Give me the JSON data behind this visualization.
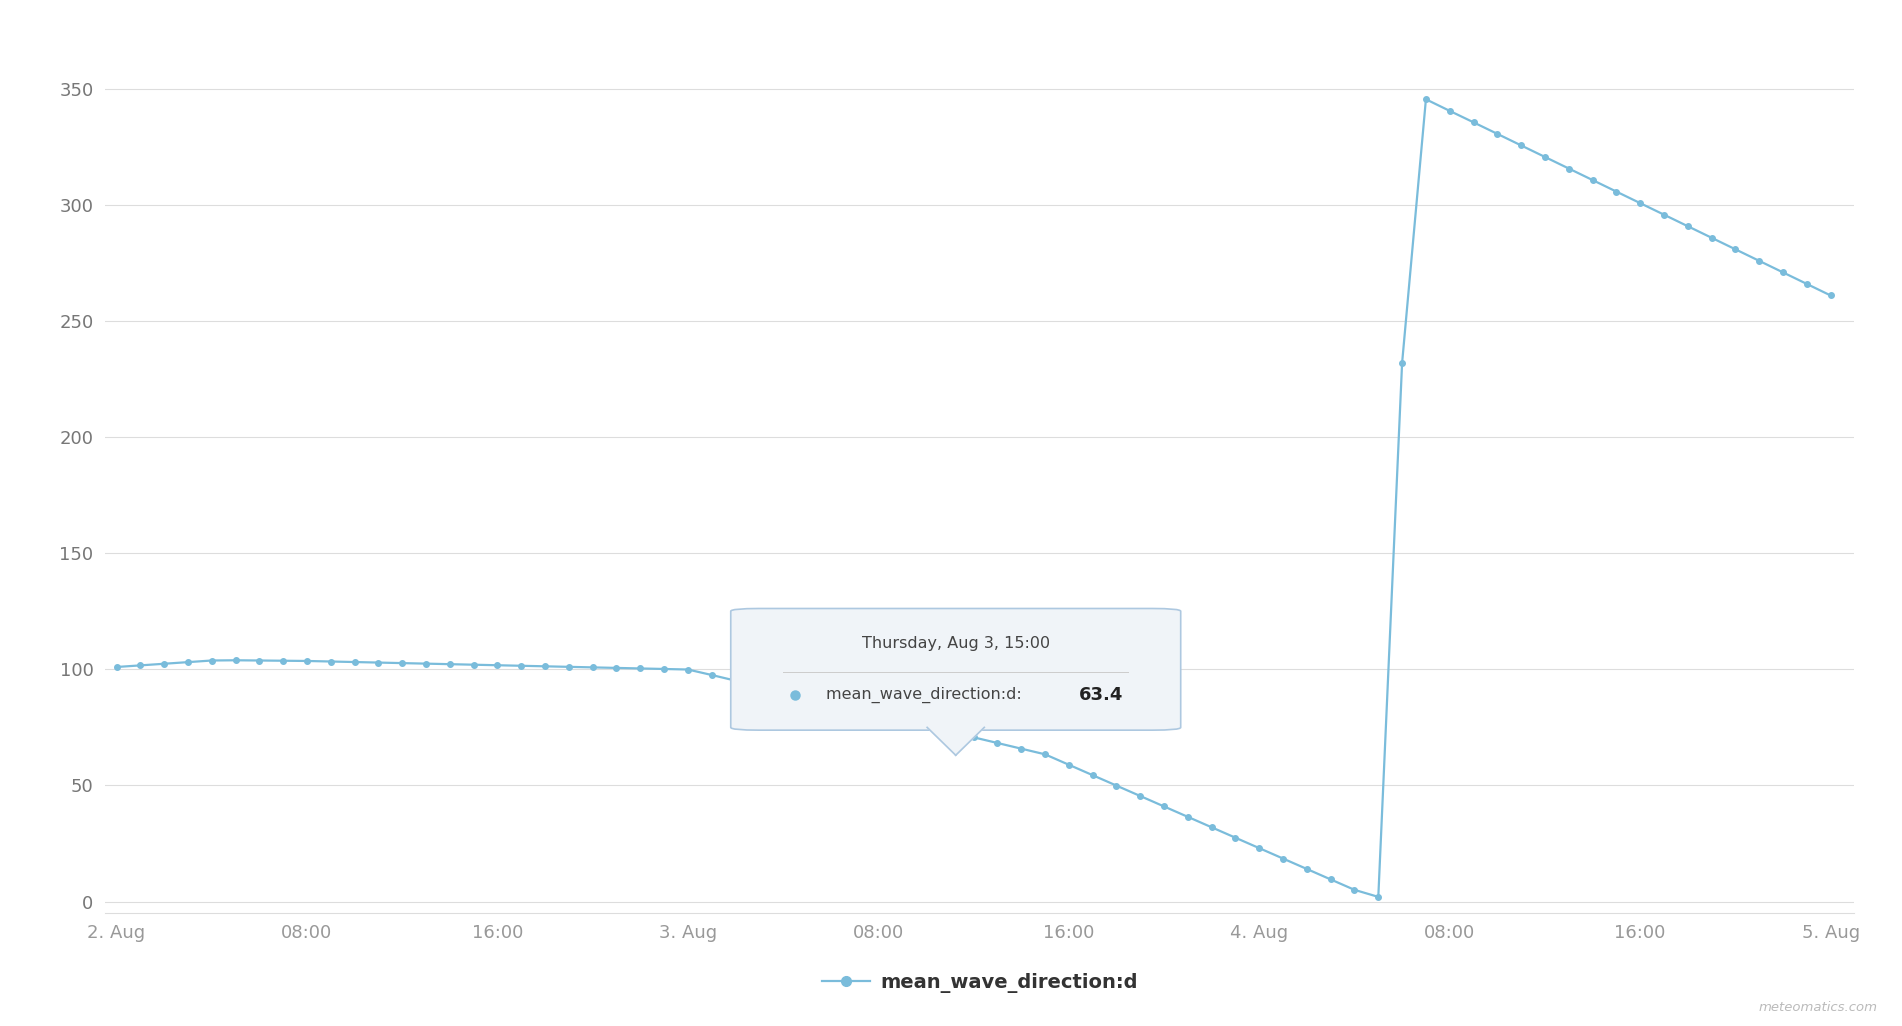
{
  "bg_color": "#ffffff",
  "grid_color": "#dddddd",
  "axis_label_color": "#999999",
  "ytick_label_color": "#777777",
  "line_color": "#7abcdb",
  "ylim": [
    -5,
    375
  ],
  "yticks": [
    0,
    50,
    100,
    150,
    200,
    250,
    300,
    350
  ],
  "xlim": [
    -0.5,
    73.0
  ],
  "xtick_positions": [
    0,
    8,
    16,
    24,
    32,
    40,
    48,
    56,
    64,
    72
  ],
  "xtick_labels": [
    "2. Aug",
    "08:00",
    "16:00",
    "3. Aug",
    "08:00",
    "16:00",
    "4. Aug",
    "08:00",
    "16:00",
    "5. Aug"
  ],
  "legend_label": "mean_wave_direction:d",
  "tooltip_title": "Thursday, Aug 3, 15:00",
  "tooltip_series": "mean_wave_direction:d: ",
  "tooltip_value": "63.4",
  "watermark": "meteomatics.com",
  "line_width": 1.6,
  "dot_size": 4.0
}
